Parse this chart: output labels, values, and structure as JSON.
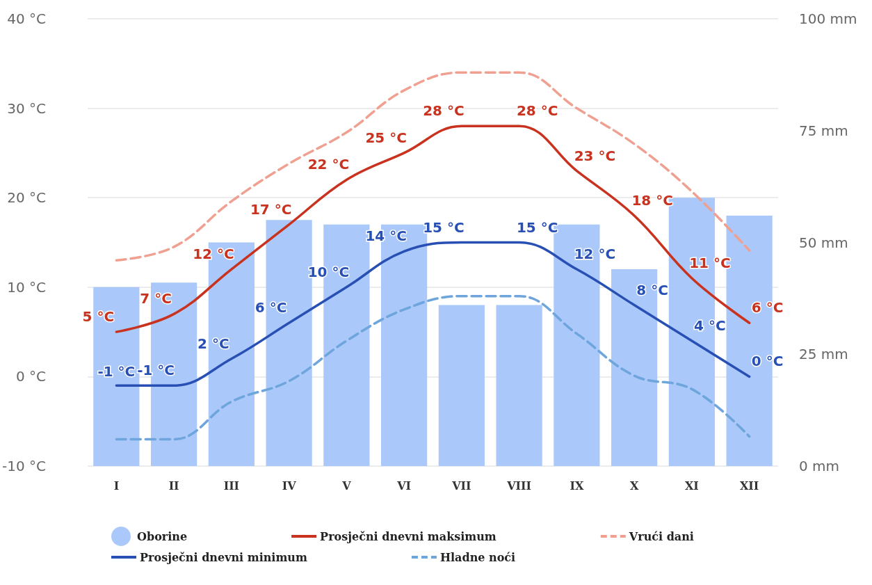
{
  "chart_data": {
    "type": "line",
    "categories": [
      "I",
      "II",
      "III",
      "IV",
      "V",
      "VI",
      "VII",
      "VIII",
      "IX",
      "X",
      "XI",
      "XII"
    ],
    "series": [
      {
        "name": "Oborine",
        "type": "bar",
        "axis": "y2",
        "color": "#aac8fa",
        "values": [
          40,
          41,
          50,
          55,
          54,
          54,
          36,
          36,
          54,
          44,
          60,
          56
        ]
      },
      {
        "name": "Prosječni dnevni maksimum",
        "color": "#c8321e",
        "line_style": "solid",
        "values": [
          5,
          7,
          12,
          17,
          22,
          25,
          28,
          28,
          23,
          18,
          11,
          6
        ],
        "value_labels": [
          "5 °C",
          "7 °C",
          "12 °C",
          "17 °C",
          "22 °C",
          "25 °C",
          "28 °C",
          "28 °C",
          "23 °C",
          "18 °C",
          "11 °C",
          "6 °C"
        ]
      },
      {
        "name": "Vrući dani",
        "color": "#f0a091",
        "line_style": "dashed",
        "values": [
          13,
          14.5,
          19.6,
          23.8,
          27.3,
          32,
          34,
          34,
          30,
          26,
          20.7,
          14.1
        ]
      },
      {
        "name": "Prosječni dnevni minimum",
        "color": "#2850b4",
        "line_style": "solid",
        "values": [
          -1,
          -1,
          2,
          6,
          10,
          14,
          15,
          15,
          12,
          8,
          4,
          0
        ],
        "value_labels": [
          "-1 °C",
          "-1 °C",
          "2 °C",
          "6 °C",
          "10 °C",
          "14 °C",
          "15 °C",
          "15 °C",
          "12 °C",
          "8 °C",
          "4 °C",
          "0 °C"
        ]
      },
      {
        "name": "Hladne noći",
        "color": "#6ea5dc",
        "line_style": "dashed",
        "values": [
          -7,
          -7,
          -2.8,
          -0.5,
          4,
          7.5,
          9,
          9,
          4.8,
          0.1,
          -1.4,
          -6.7
        ]
      }
    ],
    "ylim": [
      -10,
      40
    ],
    "yticks": [
      {
        "value": -10,
        "label": "-10 °C"
      },
      {
        "value": 0,
        "label": "0 °C"
      },
      {
        "value": 10,
        "label": "10 °C"
      },
      {
        "value": 20,
        "label": "20 °C"
      },
      {
        "value": 30,
        "label": "30 °C"
      },
      {
        "value": 40,
        "label": "40 °C"
      }
    ],
    "y2lim": [
      0,
      100
    ],
    "y2ticks": [
      {
        "value": 0,
        "label": "0 mm"
      },
      {
        "value": 25,
        "label": "25 mm"
      },
      {
        "value": 50,
        "label": "50 mm"
      },
      {
        "value": 75,
        "label": "75 mm"
      },
      {
        "value": 100,
        "label": "100 mm"
      }
    ],
    "grid": "y",
    "legend": "bottom",
    "marker": "none"
  }
}
